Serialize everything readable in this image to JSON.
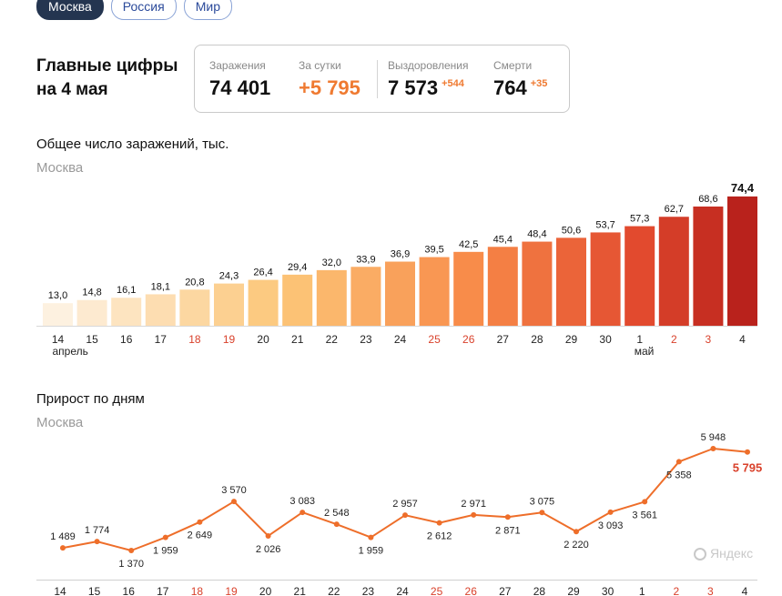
{
  "tabs": [
    {
      "label": "Москва",
      "active": true
    },
    {
      "label": "Россия",
      "active": false
    },
    {
      "label": "Мир",
      "active": false
    }
  ],
  "header": {
    "title_line1": "Главные цифры",
    "title_line2": "на 4 мая"
  },
  "stats": {
    "infections": {
      "label": "Заражения",
      "value": "74 401"
    },
    "daily": {
      "label": "За сутки",
      "value": "+5 795"
    },
    "recovered": {
      "label": "Выздоровления",
      "value": "7 573",
      "delta": "+544"
    },
    "deaths": {
      "label": "Смерти",
      "value": "764",
      "delta": "+35"
    }
  },
  "colors": {
    "accent": "#ef7a31",
    "weekend": "#d9412b",
    "line": "#ee6e2a"
  },
  "watermark": "Яндекс",
  "chart_data": [
    {
      "type": "bar",
      "title": "Общее число заражений, тыс.",
      "subtitle": "Москва",
      "categories": [
        "14",
        "15",
        "16",
        "17",
        "18",
        "19",
        "20",
        "21",
        "22",
        "23",
        "24",
        "25",
        "26",
        "27",
        "28",
        "29",
        "30",
        "1",
        "2",
        "3",
        "4"
      ],
      "month_labels": [
        {
          "at": "14",
          "label": "апрель"
        },
        {
          "at": "1",
          "label": "май"
        }
      ],
      "weekend": [
        "18",
        "19",
        "25",
        "26",
        "2",
        "3"
      ],
      "values": [
        13.0,
        14.8,
        16.1,
        18.1,
        20.8,
        24.3,
        26.4,
        29.4,
        32.0,
        33.9,
        36.9,
        39.5,
        42.5,
        45.4,
        48.4,
        50.6,
        53.7,
        57.3,
        62.7,
        68.6,
        74.4
      ],
      "value_labels": [
        "13,0",
        "14,8",
        "16,1",
        "18,1",
        "20,8",
        "24,3",
        "26,4",
        "29,4",
        "32,0",
        "33,9",
        "36,9",
        "39,5",
        "42,5",
        "45,4",
        "48,4",
        "50,6",
        "53,7",
        "57,3",
        "62,7",
        "68,6",
        "74,4"
      ],
      "highlight_last": true
    },
    {
      "type": "line",
      "title": "Прирост по дням",
      "subtitle": "Москва",
      "categories": [
        "14",
        "15",
        "16",
        "17",
        "18",
        "19",
        "20",
        "21",
        "22",
        "23",
        "24",
        "25",
        "26",
        "27",
        "28",
        "29",
        "30",
        "1",
        "2",
        "3",
        "4"
      ],
      "weekend": [
        "18",
        "19",
        "25",
        "26",
        "2",
        "3"
      ],
      "values": [
        1489,
        1774,
        1370,
        1959,
        2649,
        3570,
        2026,
        3083,
        2548,
        1959,
        2957,
        2612,
        2971,
        2871,
        3075,
        2220,
        3093,
        3561,
        5358,
        5948,
        5795
      ],
      "value_labels": [
        "1 489",
        "1 774",
        "1 370",
        "1 959",
        "2 649",
        "3 570",
        "2 026",
        "3 083",
        "2 548",
        "1 959",
        "2 957",
        "2 612",
        "2 971",
        "2 871",
        "3 075",
        "2 220",
        "3 093",
        "3 561",
        "5 358",
        "5 948",
        "5 795"
      ],
      "highlight_last": true
    }
  ]
}
